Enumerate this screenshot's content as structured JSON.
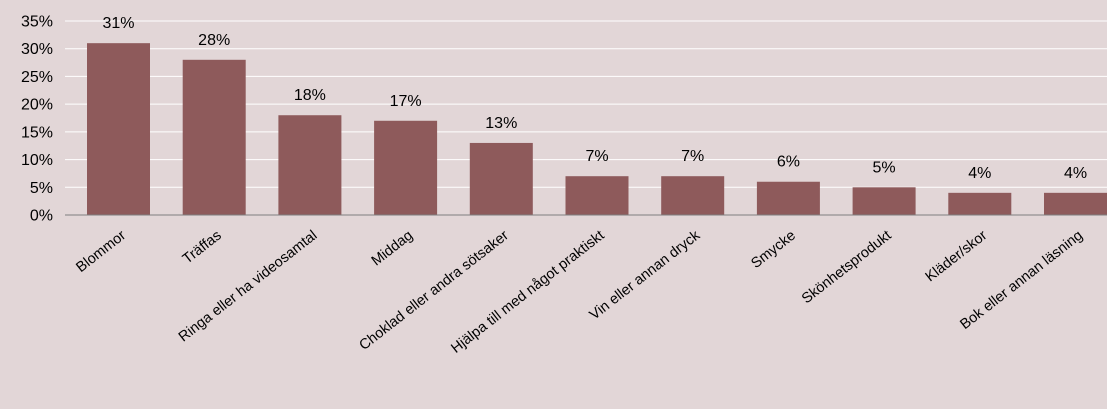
{
  "colors": {
    "background": "#e2d6d7",
    "bar": "#8e5a5b",
    "grid": "#ffffff"
  },
  "chart_data": {
    "type": "bar",
    "title": "",
    "xlabel": "",
    "ylabel": "",
    "ylim": [
      0,
      35
    ],
    "ytick_values": [
      0,
      5,
      10,
      15,
      20,
      25,
      30,
      35
    ],
    "ytick_labels": [
      "0%",
      "5%",
      "10%",
      "15%",
      "20%",
      "25%",
      "30%",
      "35%"
    ],
    "grid": true,
    "legend": "none",
    "categories": [
      "Blommor",
      "Träffas",
      "Ringa eller ha videosamtal",
      "Middag",
      "Choklad eller andra sötsaker",
      "Hjälpa till med något praktiskt",
      "Vin eller annan dryck",
      "Smycke",
      "Skönhetsprodukt",
      "Kläder/skor",
      "Bok eller annan läsning"
    ],
    "values": [
      31,
      28,
      18,
      17,
      13,
      7,
      7,
      6,
      5,
      4,
      4
    ],
    "data_labels": [
      "31%",
      "28%",
      "18%",
      "17%",
      "13%",
      "7%",
      "7%",
      "6%",
      "5%",
      "4%",
      "4%"
    ]
  }
}
